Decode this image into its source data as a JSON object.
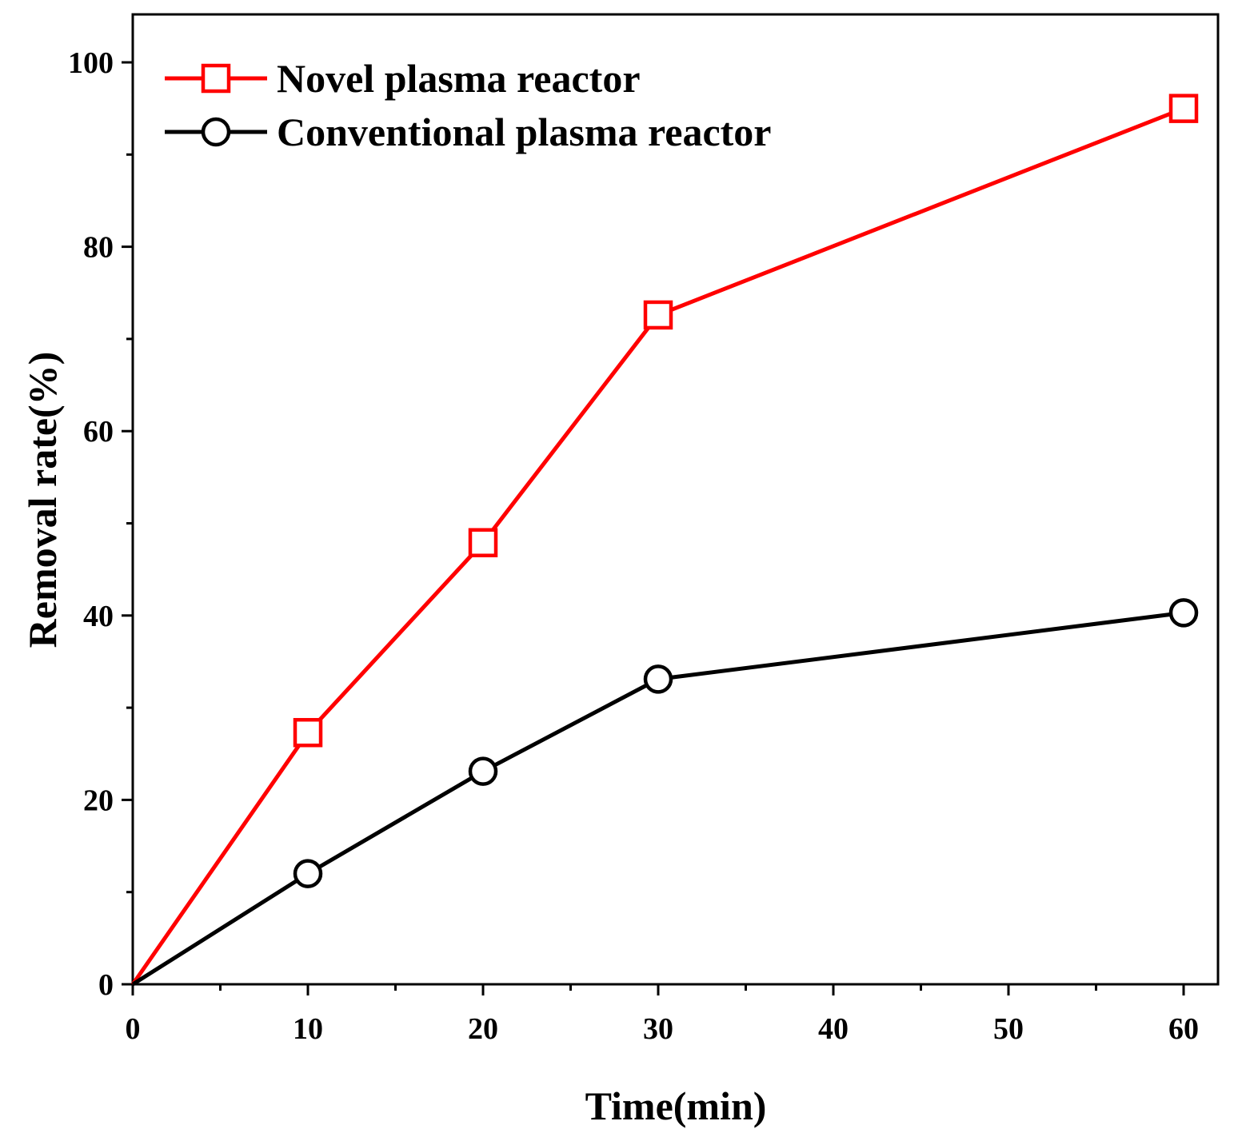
{
  "chart_data": {
    "type": "line",
    "title": "",
    "xlabel": "Time(min)",
    "ylabel": "Removal rate(%)",
    "xlim": [
      0,
      62
    ],
    "ylim": [
      0,
      105
    ],
    "x_ticks": [
      0,
      10,
      20,
      30,
      40,
      50,
      60
    ],
    "x_tick_labels": [
      "0",
      "10",
      "20",
      "30",
      "40",
      "50",
      "60"
    ],
    "x_minor_ticks": [
      5,
      15,
      25,
      35,
      45,
      55
    ],
    "y_ticks": [
      0,
      20,
      40,
      60,
      80,
      100
    ],
    "y_tick_labels": [
      "0",
      "20",
      "40",
      "60",
      "80",
      "100"
    ],
    "y_minor_ticks": [
      10,
      30,
      50,
      70,
      90
    ],
    "grid": false,
    "legend_position": "top-left",
    "series": [
      {
        "name": "Novel plasma reactor",
        "color": "#ff0000",
        "marker": "square",
        "x": [
          0,
          10,
          20,
          30,
          60
        ],
        "values": [
          0,
          27.3,
          47.9,
          72.6,
          95.0
        ]
      },
      {
        "name": "Conventional plasma reactor",
        "color": "#000000",
        "marker": "circle",
        "x": [
          0,
          10,
          20,
          30,
          60
        ],
        "values": [
          0,
          12.0,
          23.1,
          33.1,
          40.3
        ]
      }
    ]
  }
}
